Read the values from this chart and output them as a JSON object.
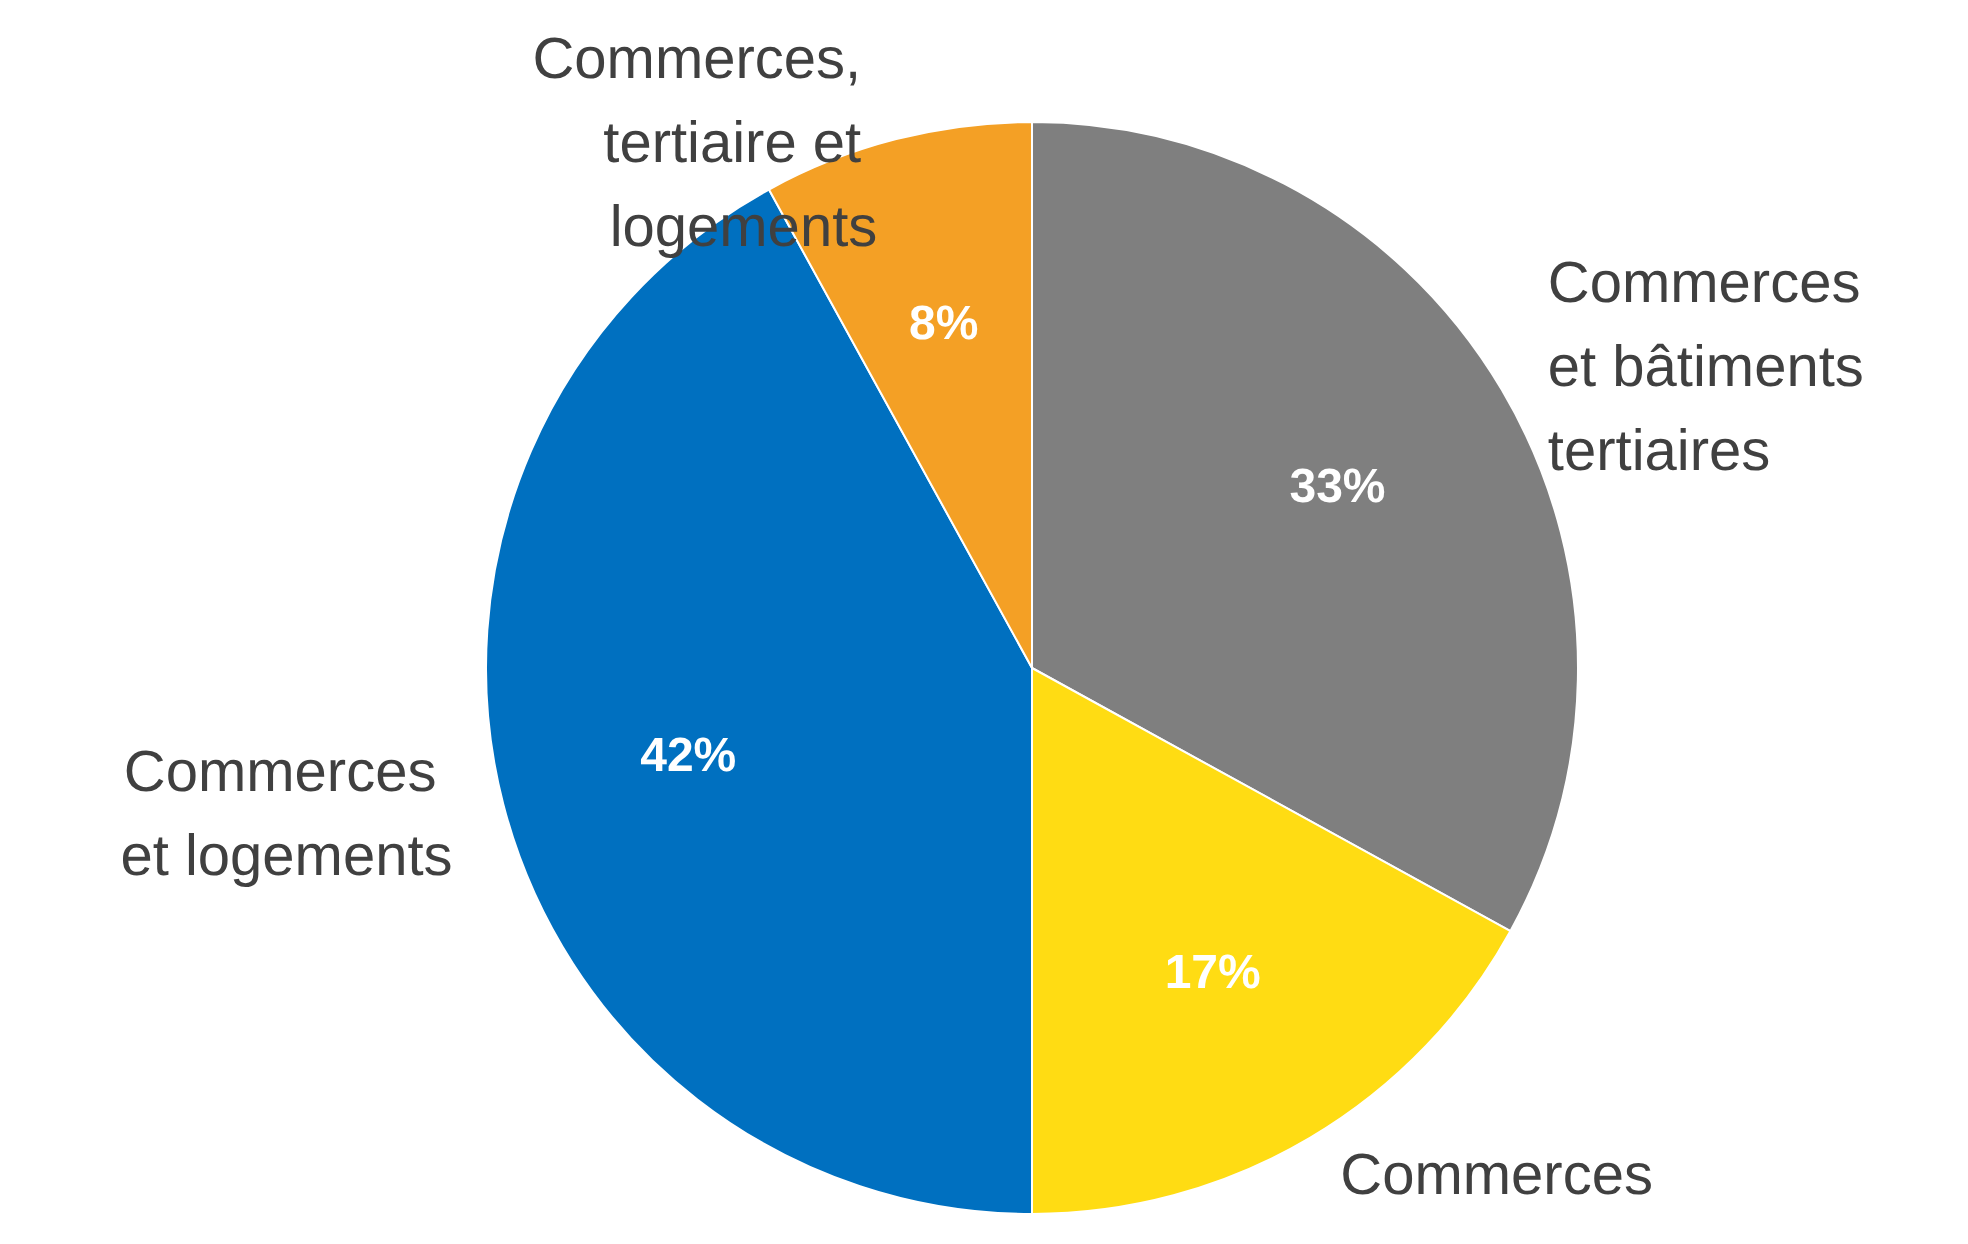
{
  "chart_data": {
    "type": "pie",
    "categories": [
      "Commerces et bâtiments tertiaires",
      "Commerces",
      "Commerces et logements",
      "Commerces, tertiaire et logements"
    ],
    "values": [
      33,
      17,
      42,
      8
    ],
    "colors": [
      "#7f7f7f",
      "#ffdc13",
      "#0070c0",
      "#f4a025"
    ],
    "value_labels": [
      "33%",
      "17%",
      "42%",
      "8%"
    ],
    "legend": false
  }
}
